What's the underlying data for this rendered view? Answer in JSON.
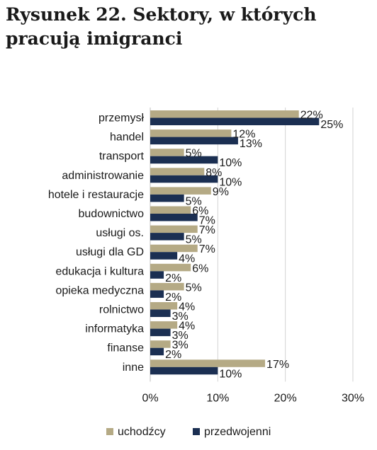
{
  "title": "Rysunek 22. Sektory, w których pracują imigranci",
  "chart_data": {
    "type": "bar",
    "orientation": "horizontal",
    "categories": [
      "przemysł",
      "handel",
      "transport",
      "administrowanie",
      "hotele i restauracje",
      "budownictwo",
      "usługi os.",
      "usługi dla GD",
      "edukacja i kultura",
      "opieka medyczna",
      "rolnictwo",
      "informatyka",
      "finanse",
      "inne"
    ],
    "series": [
      {
        "name": "uchodźcy",
        "color": "#b5aa85",
        "values": [
          22,
          12,
          5,
          8,
          9,
          6,
          7,
          7,
          6,
          5,
          4,
          4,
          3,
          17
        ],
        "labels": [
          "22%",
          "12%",
          "5%",
          "8%",
          "9%",
          "6%",
          "7%",
          "7%",
          "6%",
          "5%",
          "4%",
          "4%",
          "3%",
          "17%"
        ]
      },
      {
        "name": "przedwojenni",
        "color": "#1b2f52",
        "values": [
          25,
          13,
          10,
          10,
          5,
          7,
          5,
          4,
          2,
          2,
          3,
          3,
          2,
          10
        ],
        "labels": [
          "25%",
          "13%",
          "10%",
          "10%",
          "5%",
          "7%",
          "5%",
          "4%",
          "2%",
          "2%",
          "3%",
          "3%",
          "2%",
          "10%"
        ]
      }
    ],
    "xlim": [
      0,
      30
    ],
    "xticks": [
      "0%",
      "10%",
      "20%",
      "30%"
    ],
    "grid": true,
    "legend": "bottom"
  }
}
